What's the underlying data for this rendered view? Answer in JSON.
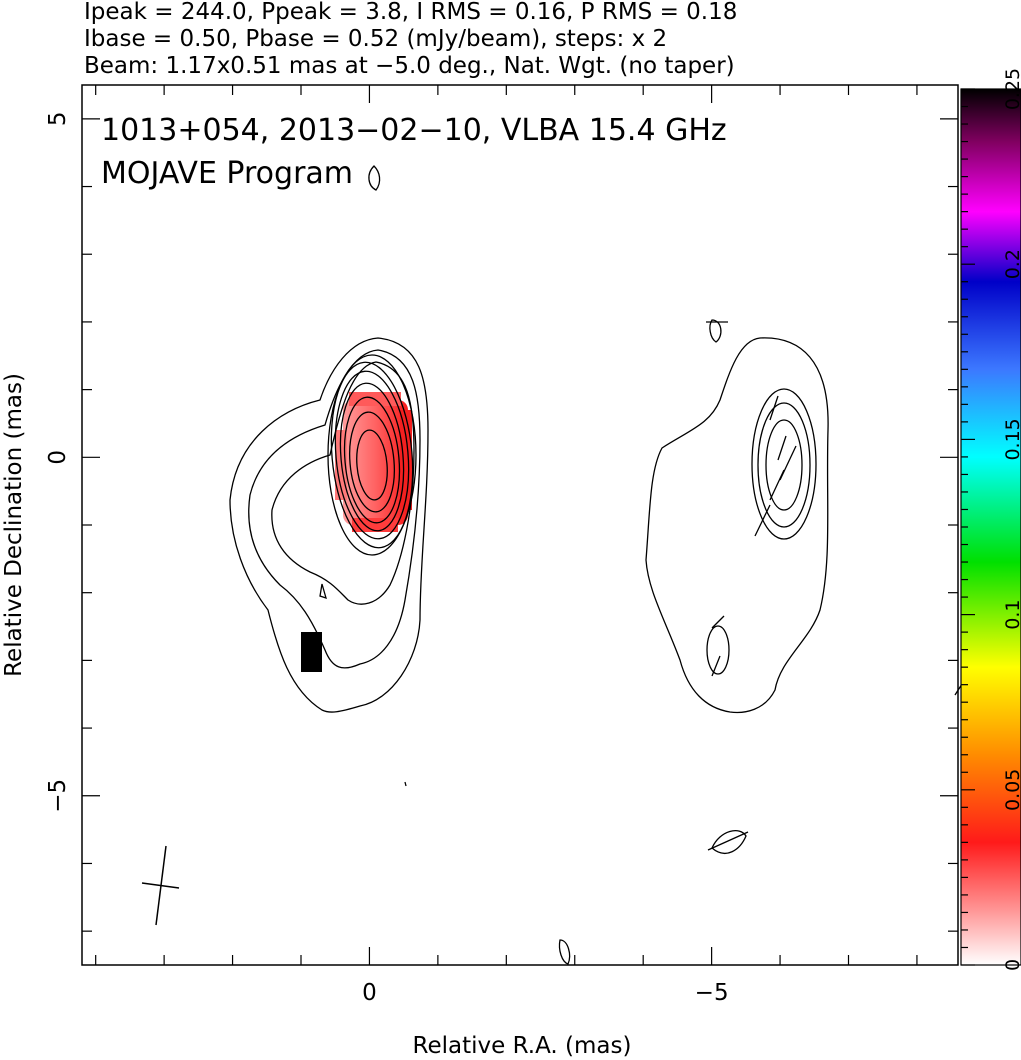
{
  "header": {
    "line1": "Ipeak = 244.0, Ppeak = 3.8, I RMS = 0.16, P RMS = 0.18",
    "line2": "Ibase = 0.50, Pbase = 0.52 (mJy/beam), steps: x 2",
    "line3": "Beam: 1.17x0.51 mas at −5.0 deg., Nat. Wgt. (no taper)"
  },
  "chart_data": {
    "type": "contour",
    "annotation": {
      "source_line": "1013+054, 2013−02−10, VLBA 15.4 GHz",
      "program_line": "MOJAVE Program"
    },
    "xlabel": "Relative R.A. (mas)",
    "ylabel": "Relative Declination (mas)",
    "xlim": [
      4.2,
      -8.6
    ],
    "ylim": [
      -7.5,
      5.5
    ],
    "x_ticks": [
      {
        "value": 0,
        "label": "0"
      },
      {
        "value": -5,
        "label": "−5"
      }
    ],
    "y_ticks": [
      {
        "value": 5,
        "label": "5"
      },
      {
        "value": 0,
        "label": "0"
      },
      {
        "value": -5,
        "label": "−5"
      }
    ],
    "total_intensity": {
      "peak_mJy_per_beam": 244.0,
      "base_mJy_per_beam": 0.5,
      "step_factor": 2,
      "core_position_mas": [
        0,
        0
      ],
      "secondary_component_mas": [
        -6.0,
        0
      ]
    },
    "polarization": {
      "peak_mJy_per_beam": 3.8,
      "base_mJy_per_beam": 0.52,
      "colored_region_center_mas": [
        -0.1,
        -0.3
      ]
    },
    "beam": {
      "major_mas": 1.17,
      "minor_mas": 0.51,
      "pa_deg": -5.0,
      "center_mas": [
        3.1,
        -6.4
      ]
    },
    "colorbar": {
      "min": 0,
      "max": 0.25,
      "ticks": [
        {
          "value": 0,
          "label": "0"
        },
        {
          "value": 0.05,
          "label": "0.05"
        },
        {
          "value": 0.1,
          "label": "0.1"
        },
        {
          "value": 0.15,
          "label": "0.15"
        },
        {
          "value": 0.2,
          "label": "0.2"
        },
        {
          "value": 0.25,
          "label": "0.25"
        }
      ],
      "colors": [
        "#ffffff",
        "#ff3030",
        "#ff8c00",
        "#ffff00",
        "#00e000",
        "#00ffff",
        "#3060ff",
        "#0000c8",
        "#ff00ff",
        "#800060",
        "#000000"
      ]
    }
  }
}
